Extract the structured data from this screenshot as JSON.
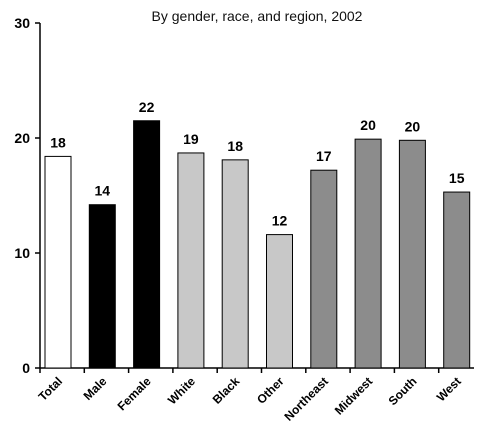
{
  "chart_data": {
    "type": "bar",
    "title": "By gender, race, and region, 2002",
    "xlabel": "",
    "ylabel": "",
    "ylim": [
      0,
      30
    ],
    "yticks": [
      0,
      10,
      20,
      30
    ],
    "grid": false,
    "categories": [
      "Total",
      "Male",
      "Female",
      "White",
      "Black",
      "Other",
      "Northeast",
      "Midwest",
      "South",
      "West"
    ],
    "values": [
      18.4,
      14.2,
      21.5,
      18.7,
      18.1,
      11.6,
      17.2,
      19.9,
      19.8,
      15.3
    ],
    "data_labels": [
      "18",
      "14",
      "22",
      "19",
      "18",
      "12",
      "17",
      "20",
      "20",
      "15"
    ],
    "colors": [
      "#ffffff",
      "#000000",
      "#000000",
      "#c8c8c8",
      "#c8c8c8",
      "#c8c8c8",
      "#8c8c8c",
      "#8c8c8c",
      "#8c8c8c",
      "#8c8c8c"
    ]
  }
}
